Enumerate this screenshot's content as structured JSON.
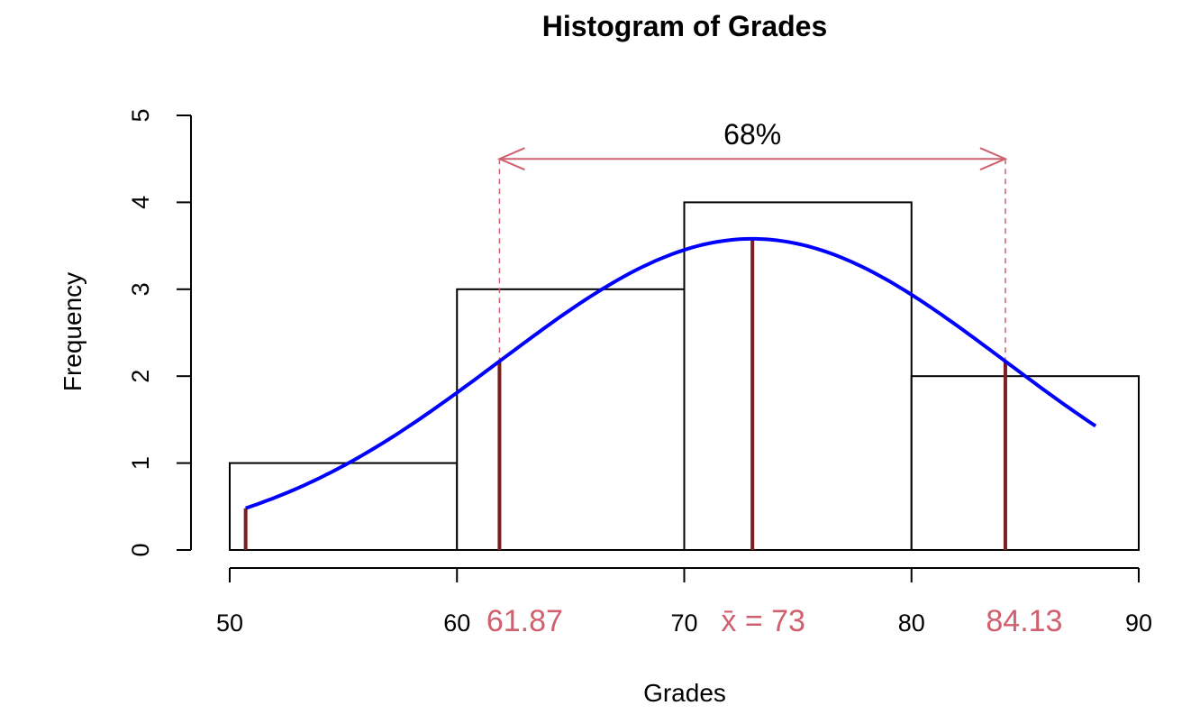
{
  "chart_data": {
    "type": "bar",
    "title": "Histogram of Grades",
    "xlabel": "Grades",
    "ylabel": "Frequency",
    "bins": [
      {
        "from": 50,
        "to": 60,
        "count": 1
      },
      {
        "from": 60,
        "to": 70,
        "count": 3
      },
      {
        "from": 70,
        "to": 80,
        "count": 4
      },
      {
        "from": 80,
        "to": 90,
        "count": 2
      }
    ],
    "xlim": [
      50,
      90
    ],
    "ylim": [
      0,
      5
    ],
    "xticks": [
      50,
      60,
      70,
      80,
      90
    ],
    "yticks": [
      0,
      1,
      2,
      3,
      4,
      5
    ],
    "normal_curve": {
      "mean": 73,
      "sd": 11.13,
      "x_range": [
        50.7,
        88.1
      ],
      "peak": 3.58,
      "color": "#0000ff"
    },
    "vertical_lines": [
      {
        "x": 50.7,
        "height": 0.48
      },
      {
        "x": 61.87,
        "height": 2.17
      },
      {
        "x": 73,
        "height": 3.58
      },
      {
        "x": 84.13,
        "height": 2.17
      }
    ],
    "vline_color": "#7b2020",
    "annotation_color": "#d0606f",
    "annotations": {
      "bracket_label": "68%",
      "bracket_y": 4.5,
      "bracket_from": 61.87,
      "bracket_to": 84.13,
      "low_label": "61.87",
      "mean_label": "x̄ = 73",
      "high_label": "84.13"
    },
    "grid": false,
    "legend": "none"
  }
}
